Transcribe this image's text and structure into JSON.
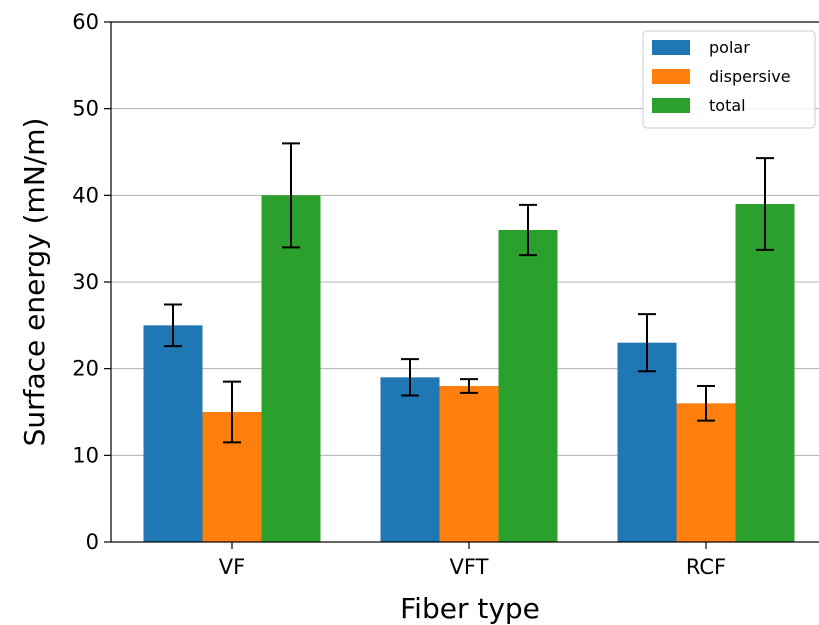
{
  "chart_data": {
    "type": "bar",
    "categories": [
      "VF",
      "VFT",
      "RCF"
    ],
    "xlabel": "Fiber type",
    "ylabel": "Surface energy (mN/m)",
    "ylim": [
      0,
      60
    ],
    "yticks": [
      "0",
      "10",
      "20",
      "30",
      "40",
      "50",
      "60"
    ],
    "grid": "horizontal",
    "legend_position": "top-right",
    "series": [
      {
        "name": "polar",
        "color": "#1f77b4",
        "values": [
          25,
          19,
          23
        ],
        "errors": [
          2.4,
          2.1,
          3.3
        ]
      },
      {
        "name": "dispersive",
        "color": "#ff7f0e",
        "values": [
          15,
          18,
          16
        ],
        "errors": [
          3.5,
          0.8,
          2.0
        ]
      },
      {
        "name": "total",
        "color": "#2ca02c",
        "values": [
          40,
          36,
          39
        ],
        "errors": [
          6.0,
          2.9,
          5.3
        ]
      }
    ]
  }
}
